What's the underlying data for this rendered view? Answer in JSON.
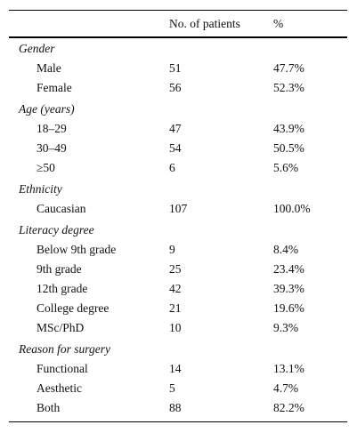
{
  "table": {
    "columns": [
      "No. of patients",
      "%"
    ],
    "sections": [
      {
        "title": "Gender",
        "rows": [
          [
            "Male",
            "51",
            "47.7%"
          ],
          [
            "Female",
            "56",
            "52.3%"
          ]
        ]
      },
      {
        "title": "Age (years)",
        "rows": [
          [
            "18–29",
            "47",
            "43.9%"
          ],
          [
            "30–49",
            "54",
            "50.5%"
          ],
          [
            "≥50",
            "6",
            "5.6%"
          ]
        ]
      },
      {
        "title": "Ethnicity",
        "rows": [
          [
            "Caucasian",
            "107",
            "100.0%"
          ]
        ]
      },
      {
        "title": "Literacy degree",
        "rows": [
          [
            "Below 9th grade",
            "9",
            "8.4%"
          ],
          [
            "9th grade",
            "25",
            "23.4%"
          ],
          [
            "12th grade",
            "42",
            "39.3%"
          ],
          [
            "College degree",
            "21",
            "19.6%"
          ],
          [
            "MSc/PhD",
            "10",
            "9.3%"
          ]
        ]
      },
      {
        "title": "Reason for surgery",
        "rows": [
          [
            "Functional",
            "14",
            "13.1%"
          ],
          [
            "Aesthetic",
            "5",
            "4.7%"
          ],
          [
            "Both",
            "88",
            "82.2%"
          ]
        ]
      }
    ]
  }
}
